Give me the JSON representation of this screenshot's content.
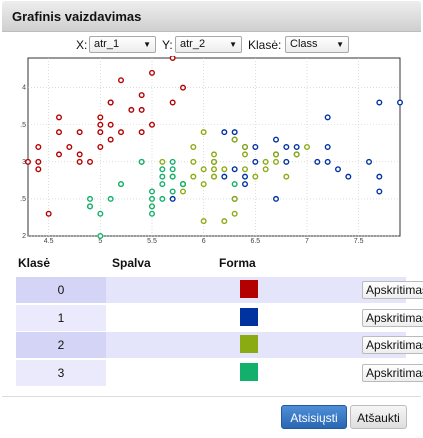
{
  "dialog": {
    "title": "Grafinis vaizdavimas"
  },
  "controls": {
    "x_label": "X:",
    "x_value": "atr_1",
    "y_label": "Y:",
    "y_value": "atr_2",
    "class_label": "Klasė:",
    "class_value": "Class"
  },
  "chart_data": {
    "type": "scatter",
    "xlim": [
      4.3,
      7.9
    ],
    "ylim": [
      2.0,
      4.4
    ],
    "x_ticks": [
      "4.5",
      "5",
      "5.5",
      "6",
      "6.5",
      "7",
      "7.5"
    ],
    "x_tick_values": [
      4.5,
      5.0,
      5.5,
      6.0,
      6.5,
      7.0,
      7.5
    ],
    "y_ticks": [
      "4",
      "3.5",
      "3",
      "2.5",
      "2"
    ],
    "y_tick_values": [
      4.0,
      3.5,
      3.0,
      2.5,
      2.0
    ],
    "grid": true,
    "series": [
      {
        "color": "#b30000",
        "points": [
          [
            5.8,
            4.0
          ],
          [
            5.7,
            4.4
          ],
          [
            5.4,
            3.9
          ],
          [
            5.1,
            3.5
          ],
          [
            4.9,
            3.0
          ],
          [
            4.7,
            3.2
          ],
          [
            4.6,
            3.1
          ],
          [
            5.0,
            3.6
          ],
          [
            5.4,
            3.7
          ],
          [
            4.8,
            3.4
          ],
          [
            4.8,
            3.0
          ],
          [
            4.3,
            3.0
          ],
          [
            5.1,
            3.8
          ],
          [
            5.7,
            3.8
          ],
          [
            5.4,
            3.4
          ],
          [
            4.6,
            3.6
          ],
          [
            5.1,
            3.3
          ],
          [
            4.8,
            3.1
          ],
          [
            5.2,
            4.1
          ],
          [
            5.5,
            4.2
          ],
          [
            5.0,
            3.2
          ],
          [
            5.5,
            3.5
          ],
          [
            4.4,
            2.9
          ],
          [
            4.4,
            3.2
          ],
          [
            5.0,
            3.5
          ],
          [
            4.5,
            2.3
          ],
          [
            4.4,
            3.0
          ],
          [
            5.0,
            3.4
          ],
          [
            4.6,
            3.4
          ],
          [
            5.2,
            3.4
          ],
          [
            5.3,
            3.7
          ],
          [
            5.1,
            3.8
          ]
        ]
      },
      {
        "color": "#0033a0",
        "points": [
          [
            6.3,
            3.3
          ],
          [
            5.8,
            2.7
          ],
          [
            7.1,
            3.0
          ],
          [
            6.3,
            2.9
          ],
          [
            6.5,
            3.0
          ],
          [
            7.6,
            3.0
          ],
          [
            7.3,
            2.9
          ],
          [
            6.7,
            2.5
          ],
          [
            7.2,
            3.6
          ],
          [
            6.4,
            2.7
          ],
          [
            6.8,
            3.0
          ],
          [
            5.7,
            2.5
          ],
          [
            7.7,
            3.8
          ],
          [
            7.7,
            2.6
          ],
          [
            6.9,
            3.2
          ],
          [
            7.7,
            2.8
          ],
          [
            6.7,
            3.3
          ],
          [
            7.2,
            3.2
          ],
          [
            6.2,
            2.8
          ],
          [
            6.1,
            3.0
          ],
          [
            6.4,
            2.8
          ],
          [
            7.4,
            2.8
          ],
          [
            7.9,
            3.8
          ],
          [
            6.3,
            3.4
          ],
          [
            6.9,
            3.1
          ],
          [
            6.7,
            3.1
          ],
          [
            6.5,
            3.2
          ],
          [
            6.8,
            3.2
          ],
          [
            6.3,
            2.5
          ],
          [
            7.2,
            3.0
          ],
          [
            6.4,
            3.2
          ],
          [
            6.2,
            3.4
          ]
        ]
      },
      {
        "color": "#8aab12",
        "points": [
          [
            7.0,
            3.2
          ],
          [
            6.4,
            3.2
          ],
          [
            6.9,
            3.1
          ],
          [
            6.5,
            2.8
          ],
          [
            5.7,
            2.8
          ],
          [
            6.3,
            3.3
          ],
          [
            6.6,
            2.9
          ],
          [
            5.2,
            2.7
          ],
          [
            5.9,
            3.0
          ],
          [
            6.0,
            2.2
          ],
          [
            6.1,
            2.9
          ],
          [
            6.7,
            3.1
          ],
          [
            5.8,
            2.7
          ],
          [
            6.2,
            2.2
          ],
          [
            5.9,
            3.2
          ],
          [
            6.1,
            2.8
          ],
          [
            6.3,
            2.5
          ],
          [
            6.1,
            2.8
          ],
          [
            6.4,
            2.9
          ],
          [
            6.6,
            3.0
          ],
          [
            6.8,
            2.8
          ],
          [
            6.7,
            3.0
          ],
          [
            6.0,
            2.9
          ],
          [
            6.0,
            3.4
          ],
          [
            6.3,
            2.3
          ],
          [
            6.1,
            3.0
          ],
          [
            5.8,
            2.6
          ],
          [
            5.5,
            2.4
          ],
          [
            5.6,
            3.0
          ],
          [
            6.0,
            2.7
          ],
          [
            5.4,
            3.0
          ],
          [
            6.2,
            2.9
          ],
          [
            6.4,
            3.1
          ],
          [
            5.9,
            2.8
          ],
          [
            6.1,
            3.1
          ]
        ]
      },
      {
        "color": "#12b06a",
        "points": [
          [
            5.5,
            2.3
          ],
          [
            4.9,
            2.4
          ],
          [
            5.0,
            2.0
          ],
          [
            5.5,
            2.5
          ],
          [
            5.6,
            2.5
          ],
          [
            5.4,
            3.0
          ],
          [
            4.9,
            2.5
          ],
          [
            5.7,
            2.6
          ],
          [
            5.5,
            2.6
          ],
          [
            5.1,
            2.5
          ],
          [
            5.7,
            2.9
          ],
          [
            5.2,
            2.7
          ],
          [
            5.6,
            2.9
          ],
          [
            5.8,
            2.7
          ],
          [
            5.7,
            3.0
          ],
          [
            5.6,
            2.7
          ],
          [
            5.0,
            2.3
          ],
          [
            5.6,
            2.8
          ],
          [
            5.5,
            2.4
          ],
          [
            5.8,
            2.7
          ],
          [
            5.7,
            2.8
          ],
          [
            6.3,
            2.7
          ],
          [
            4.9,
            2.4
          ]
        ]
      }
    ]
  },
  "legend": {
    "headers": {
      "class": "Klasė",
      "color": "Spalva",
      "shape": "Forma"
    },
    "rows": [
      {
        "label": "0",
        "color": "#b30000",
        "shape": "Apskritimas"
      },
      {
        "label": "1",
        "color": "#0033a0",
        "shape": "Apskritimas"
      },
      {
        "label": "2",
        "color": "#8aab12",
        "shape": "Apskritimas"
      },
      {
        "label": "3",
        "color": "#12b06a",
        "shape": "Apskritimas"
      }
    ]
  },
  "buttons": {
    "download": "Atsisiųsti",
    "cancel": "Atšaukti"
  }
}
